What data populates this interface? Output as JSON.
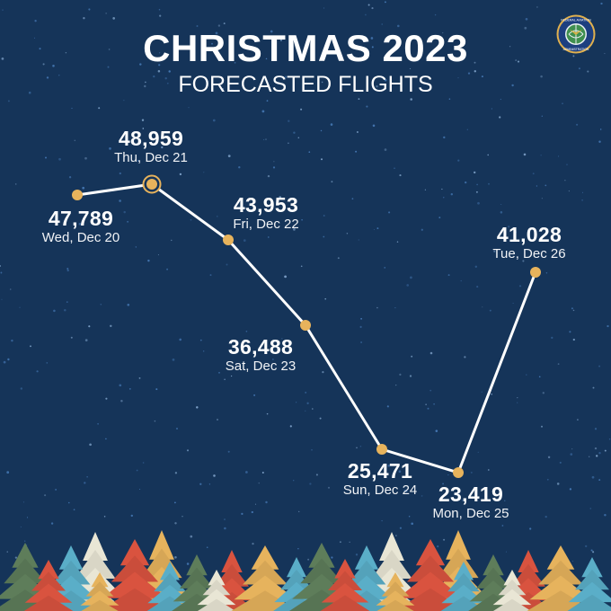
{
  "header": {
    "title": "CHRISTMAS 2023",
    "subtitle": "FORECASTED FLIGHTS"
  },
  "logo": {
    "name": "Federal Aviation Administration seal",
    "text": "FEDERAL AVIATION ADMINISTRATION"
  },
  "colors": {
    "background": "#153459",
    "line": "#ffffff",
    "marker": "#e7b35c",
    "tree_green": "#5e7d5a",
    "tree_red": "#d9533f",
    "tree_blue": "#5aaec8",
    "tree_cream": "#e9e6d5",
    "tree_yellow": "#e6b35d"
  },
  "points": [
    {
      "value": "47,789",
      "day": "Wed, Dec 20"
    },
    {
      "value": "48,959",
      "day": "Thu, Dec 21"
    },
    {
      "value": "43,953",
      "day": "Fri, Dec 22"
    },
    {
      "value": "36,488",
      "day": "Sat, Dec 23"
    },
    {
      "value": "25,471",
      "day": "Sun, Dec 24"
    },
    {
      "value": "23,419",
      "day": "Mon, Dec 25"
    },
    {
      "value": "41,028",
      "day": "Tue, Dec 26"
    }
  ],
  "chart_data": {
    "type": "line",
    "title": "CHRISTMAS 2023",
    "subtitle": "FORECASTED FLIGHTS",
    "categories": [
      "Wed, Dec 20",
      "Thu, Dec 21",
      "Fri, Dec 22",
      "Sat, Dec 23",
      "Sun, Dec 24",
      "Mon, Dec 25",
      "Tue, Dec 26"
    ],
    "series": [
      {
        "name": "Forecasted flights",
        "values": [
          47789,
          48959,
          43953,
          36488,
          25471,
          23419,
          41028
        ]
      }
    ],
    "highlight": "Thu, Dec 21",
    "xlabel": "",
    "ylabel": "",
    "grid": false,
    "legend": "none",
    "data_labels": true
  }
}
